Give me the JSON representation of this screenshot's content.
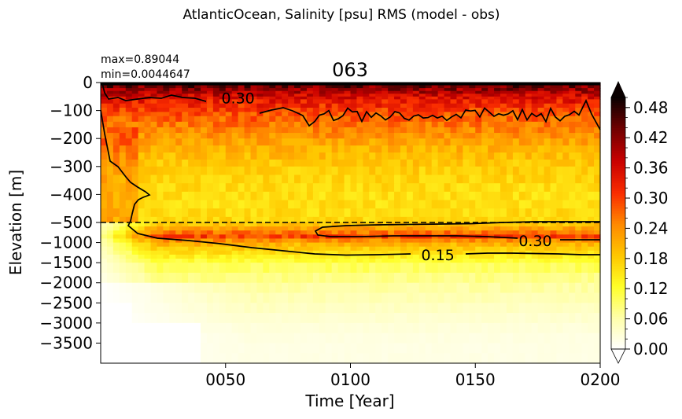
{
  "figure": {
    "suptitle": "AtlanticOcean, Salinity [psu] RMS (model - obs)",
    "title": "063",
    "max_text": "max=0.89044",
    "min_text": "min=0.0044647"
  },
  "chart_data": {
    "type": "heatmap",
    "colormap": "hot_r",
    "xlabel": "Time [Year]",
    "ylabel": "Elevation [m]",
    "xlim": [
      0,
      200
    ],
    "x_ticks": [
      50,
      100,
      150,
      200
    ],
    "x_tick_labels": [
      "0050",
      "0100",
      "0150",
      "0200"
    ],
    "upper_panel": {
      "ylim": [
        -500,
        0
      ],
      "y_ticks": [
        0,
        -100,
        -200,
        -300,
        -400,
        -500
      ],
      "y_tick_labels": [
        "0",
        "−100",
        "−200",
        "−300",
        "−400",
        "−500"
      ]
    },
    "lower_panel": {
      "ylim": [
        -4000,
        -500
      ],
      "y_ticks": [
        -1000,
        -1500,
        -2000,
        -2500,
        -3000,
        -3500
      ],
      "y_tick_labels": [
        "−1000",
        "−1500",
        "−2000",
        "−2500",
        "−3000",
        "−3500"
      ]
    },
    "split_depth": -500,
    "split_line": "dashed",
    "colorbar": {
      "vmin": 0.0,
      "vmax": 0.5,
      "extend": "both",
      "ticks": [
        0.0,
        0.06,
        0.12,
        0.18,
        0.24,
        0.3,
        0.36,
        0.42,
        0.48
      ],
      "tick_labels": [
        "0.00",
        "0.06",
        "0.12",
        "0.18",
        "0.24",
        "0.30",
        "0.36",
        "0.42",
        "0.48"
      ]
    },
    "contour_levels": [
      0.15,
      0.3,
      0.45
    ],
    "contour_labels": [
      {
        "text": "0.30",
        "x": 55,
        "y": -55
      },
      {
        "text": "0.15",
        "x": 135,
        "y": -1300
      },
      {
        "text": "0.30",
        "x": 174,
        "y": -950
      }
    ],
    "depth_profile": [
      {
        "depth": -5,
        "rms": 0.46
      },
      {
        "depth": -30,
        "rms": 0.4
      },
      {
        "depth": -60,
        "rms": 0.34
      },
      {
        "depth": -100,
        "rms": 0.3
      },
      {
        "depth": -150,
        "rms": 0.26
      },
      {
        "depth": -200,
        "rms": 0.23
      },
      {
        "depth": -250,
        "rms": 0.2
      },
      {
        "depth": -300,
        "rms": 0.18
      },
      {
        "depth": -350,
        "rms": 0.17
      },
      {
        "depth": -400,
        "rms": 0.16
      },
      {
        "depth": -450,
        "rms": 0.16
      },
      {
        "depth": -500,
        "rms": 0.17
      },
      {
        "depth": -700,
        "rms": 0.24
      },
      {
        "depth": -850,
        "rms": 0.3
      },
      {
        "depth": -1000,
        "rms": 0.21
      },
      {
        "depth": -1250,
        "rms": 0.16
      },
      {
        "depth": -1500,
        "rms": 0.11
      },
      {
        "depth": -2000,
        "rms": 0.07
      },
      {
        "depth": -2500,
        "rms": 0.05
      },
      {
        "depth": -3000,
        "rms": 0.03
      },
      {
        "depth": -3500,
        "rms": 0.02
      },
      {
        "depth": -4000,
        "rms": 0.02
      }
    ]
  }
}
